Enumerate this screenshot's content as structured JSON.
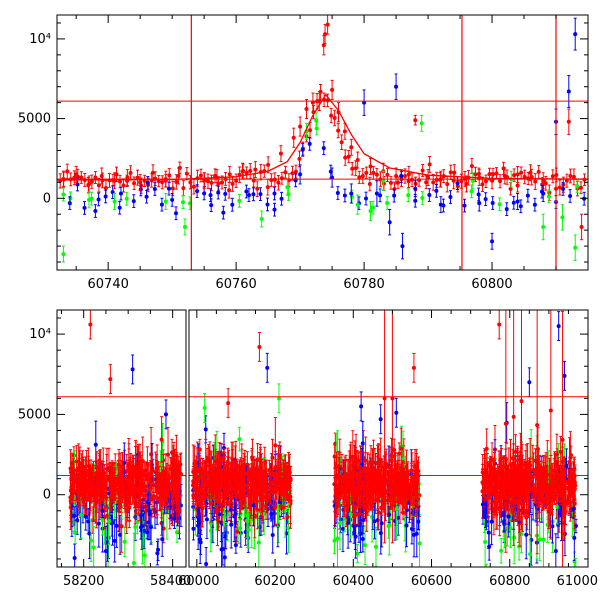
{
  "colors": {
    "red": "#ff0000",
    "blue": "#0000ff",
    "green": "#00ff00",
    "axis": "#000000"
  },
  "chart_data": [
    {
      "type": "scatter",
      "panel": "top",
      "xlim": [
        60732,
        60815
      ],
      "ylim": [
        -4500,
        11500
      ],
      "xticks": [
        60740,
        60760,
        60780,
        60800
      ],
      "xtick_labels": [
        "60740",
        "60760",
        "60780",
        "60800"
      ],
      "yticks": [
        0,
        5000,
        10000
      ],
      "ytick_labels": [
        "0",
        "5000",
        "10⁴"
      ],
      "hlines": [
        6100,
        1200
      ],
      "vlines": [
        60753,
        60795.3,
        60810
      ],
      "model_curve": {
        "x": [
          60732,
          60750,
          60760,
          60765,
          60768,
          60770,
          60772,
          60774,
          60776,
          60778,
          60780,
          60784,
          60790,
          60800,
          60815
        ],
        "y": [
          1150,
          1180,
          1350,
          1700,
          2300,
          3500,
          5200,
          6500,
          5500,
          4000,
          2800,
          1900,
          1450,
          1250,
          1200
        ]
      },
      "series": [
        {
          "color": "red",
          "x": [
            60733,
            60735,
            60737,
            60739,
            60741,
            60743,
            60745,
            60747,
            60749,
            60751,
            60755,
            60757,
            60759,
            60761,
            60763,
            60765,
            60767,
            60769,
            60770,
            60771,
            60772,
            60773,
            60773.7,
            60773.9,
            60774.3,
            60775,
            60776,
            60777,
            60778,
            60779,
            60781,
            60783,
            60785,
            60787,
            60788,
            60790,
            60792,
            60794,
            60796,
            60798,
            60800,
            60802,
            60804,
            60806,
            60808,
            60810,
            60812,
            60814
          ],
          "y": [
            1200,
            1500,
            900,
            1400,
            1100,
            1300,
            1000,
            1600,
            1200,
            1400,
            1100,
            1300,
            1500,
            1700,
            1800,
            2100,
            2800,
            3800,
            4500,
            5600,
            6000,
            6100,
            9600,
            10300,
            10900,
            6800,
            5400,
            4200,
            3200,
            2400,
            2000,
            1700,
            1400,
            1500,
            4900,
            1300,
            1200,
            1100,
            900,
            1300,
            1100,
            1400,
            1500,
            1600,
            1100,
            600,
            4800,
            -1800
          ],
          "err": [
            500,
            500,
            500,
            500,
            500,
            500,
            500,
            500,
            500,
            500,
            500,
            500,
            500,
            500,
            500,
            500,
            500,
            600,
            600,
            600,
            600,
            600,
            600,
            600,
            600,
            600,
            600,
            500,
            500,
            500,
            500,
            500,
            500,
            500,
            300,
            500,
            500,
            500,
            500,
            500,
            500,
            500,
            500,
            500,
            500,
            800,
            800,
            800
          ]
        },
        {
          "color": "blue",
          "x": [
            60734,
            60738,
            60742,
            60746,
            60750,
            60756,
            60758,
            60762,
            60766,
            60770,
            60775,
            60778,
            60780,
            60782,
            60784,
            60785,
            60786,
            60788,
            60792,
            60798,
            60800,
            60804,
            60808,
            60810,
            60812,
            60813
          ],
          "y": [
            -300,
            -800,
            300,
            100,
            -100,
            200,
            -900,
            200,
            300,
            1500,
            1300,
            300,
            6000,
            300,
            -1500,
            7000,
            -3000,
            600,
            -400,
            -300,
            -2700,
            -200,
            300,
            4800,
            6700,
            10300
          ],
          "err": [
            400,
            400,
            400,
            400,
            400,
            400,
            400,
            400,
            400,
            600,
            600,
            600,
            800,
            800,
            800,
            800,
            800,
            500,
            500,
            500,
            500,
            500,
            500,
            800,
            1000,
            1000
          ]
        },
        {
          "color": "green",
          "x": [
            60733,
            60737,
            60741,
            60749,
            60752,
            60764,
            60768,
            60771,
            60772.5,
            60779,
            60781,
            60783,
            60789,
            60797,
            60803,
            60808,
            60811,
            60813
          ],
          "y": [
            -3500,
            -100,
            -200,
            -200,
            -1800,
            -1300,
            700,
            4200,
            4900,
            -400,
            -800,
            1100,
            4700,
            1100,
            1200,
            -1800,
            -1200,
            -3100
          ],
          "err": [
            500,
            500,
            500,
            500,
            500,
            500,
            500,
            500,
            500,
            600,
            600,
            600,
            500,
            500,
            500,
            800,
            800,
            800
          ]
        }
      ]
    },
    {
      "type": "scatter",
      "panel": "bottom",
      "xlim": [
        58140,
        61000
      ],
      "x_break": [
        58430,
        59980
      ],
      "ylim": [
        -4500,
        11500
      ],
      "xticks": [
        58200,
        58400,
        60000,
        60200,
        60400,
        60600,
        60800,
        61000
      ],
      "xtick_labels": [
        "58200",
        "58400",
        "60000",
        "60200",
        "60400",
        "60600",
        "60800",
        "61000"
      ],
      "yticks": [
        0,
        5000,
        10000
      ],
      "ytick_labels": [
        "0",
        "5000",
        "10⁴"
      ],
      "hlines": [
        6100,
        1200
      ],
      "vlines": [],
      "observing_seasons": [
        [
          58170,
          58420
        ],
        [
          59990,
          60240
        ],
        [
          60350,
          60570
        ],
        [
          60730,
          60970
        ]
      ],
      "spikes": [
        {
          "color": "red",
          "x": 58215,
          "y": 10600
        },
        {
          "color": "red",
          "x": 58260,
          "y": 7200
        },
        {
          "color": "blue",
          "x": 58310,
          "y": 7800
        },
        {
          "color": "blue",
          "x": 58385,
          "y": 5000
        },
        {
          "color": "green",
          "x": 60020,
          "y": 5400
        },
        {
          "color": "red",
          "x": 60080,
          "y": 5700
        },
        {
          "color": "red",
          "x": 60160,
          "y": 9200
        },
        {
          "color": "blue",
          "x": 60180,
          "y": 7900
        },
        {
          "color": "green",
          "x": 60210,
          "y": 6000
        },
        {
          "color": "blue",
          "x": 60420,
          "y": 5500
        },
        {
          "color": "blue",
          "x": 60470,
          "y": 4700
        },
        {
          "color": "blue",
          "x": 60510,
          "y": 5100
        },
        {
          "color": "red",
          "x": 60555,
          "y": 7900
        },
        {
          "color": "red",
          "x": 60773,
          "y": 10600
        },
        {
          "color": "blue",
          "x": 60850,
          "y": 7000
        },
        {
          "color": "blue",
          "x": 60925,
          "y": 10500
        },
        {
          "color": "blue",
          "x": 60940,
          "y": 7400
        }
      ]
    }
  ]
}
